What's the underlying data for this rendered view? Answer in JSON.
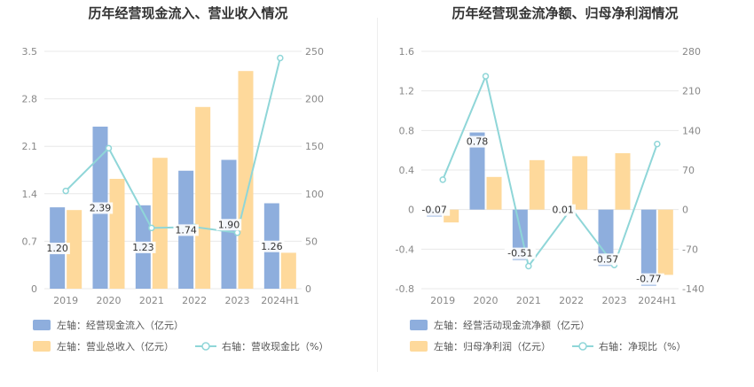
{
  "colors": {
    "bar_primary": "#8eaedd",
    "bar_secondary": "#fed99b",
    "line": "#8fd6d8",
    "grid": "#e8e8e8",
    "label_bg": "#ffffff"
  },
  "chart_data": [
    {
      "type": "bar+line",
      "title": "历年经营现金流入、营业收入情况",
      "categories": [
        "2019",
        "2020",
        "2021",
        "2022",
        "2023",
        "2024H1"
      ],
      "left_axis": {
        "min": 0,
        "max": 3.5,
        "ticks": [
          "0",
          "0.7",
          "1.4",
          "2.1",
          "2.8",
          "3.5"
        ],
        "tick_values": [
          0,
          0.7,
          1.4,
          2.1,
          2.8,
          3.5
        ]
      },
      "right_axis": {
        "min": 0,
        "max": 250,
        "ticks": [
          "0",
          "50",
          "100",
          "150",
          "200",
          "250"
        ],
        "tick_values": [
          0,
          50,
          100,
          150,
          200,
          250
        ]
      },
      "series": [
        {
          "name": "左轴：经营现金流入（亿元）",
          "type": "bar",
          "axis": "left",
          "values": [
            1.2,
            2.39,
            1.23,
            1.74,
            1.9,
            1.26
          ],
          "labels": [
            "1.20",
            "2.39",
            "1.23",
            "1.74",
            "1.90",
            "1.26"
          ],
          "color": "#8eaedd"
        },
        {
          "name": "左轴：营业总收入（亿元）",
          "type": "bar",
          "axis": "left",
          "values": [
            1.16,
            1.62,
            1.93,
            2.68,
            3.21,
            0.53
          ],
          "color": "#fed99b"
        },
        {
          "name": "右轴：营收现金比（%）",
          "type": "line",
          "axis": "right",
          "values": [
            103,
            148,
            64,
            65,
            59,
            243
          ],
          "color": "#8fd6d8"
        }
      ]
    },
    {
      "type": "bar+line",
      "title": "历年经营现金流净额、归母净利润情况",
      "categories": [
        "2019",
        "2020",
        "2021",
        "2022",
        "2023",
        "2024H1"
      ],
      "left_axis": {
        "min": -0.8,
        "max": 1.6,
        "ticks": [
          "-0.8",
          "-0.4",
          "0",
          "0.4",
          "0.8",
          "1.2",
          "1.6"
        ],
        "tick_values": [
          -0.8,
          -0.4,
          0,
          0.4,
          0.8,
          1.2,
          1.6
        ]
      },
      "right_axis": {
        "min": -140,
        "max": 280,
        "ticks": [
          "-140",
          "-70",
          "0",
          "70",
          "140",
          "210",
          "280"
        ],
        "tick_values": [
          -140,
          -70,
          0,
          70,
          140,
          210,
          280
        ]
      },
      "series": [
        {
          "name": "左轴：经营活动现金流净额（亿元）",
          "type": "bar",
          "axis": "left",
          "values": [
            -0.07,
            0.78,
            -0.51,
            0.01,
            -0.57,
            -0.77
          ],
          "labels": [
            "-0.07",
            "0.78",
            "-0.51",
            "0.01",
            "-0.57",
            "-0.77"
          ],
          "color": "#8eaedd"
        },
        {
          "name": "左轴：归母净利润（亿元）",
          "type": "bar",
          "axis": "left",
          "values": [
            -0.13,
            0.33,
            0.5,
            0.54,
            0.57,
            -0.66
          ],
          "color": "#fed99b"
        },
        {
          "name": "右轴：净现比（%）",
          "type": "line",
          "axis": "right",
          "values": [
            53,
            236,
            -100,
            2,
            -98,
            116
          ],
          "color": "#8fd6d8"
        }
      ]
    }
  ]
}
